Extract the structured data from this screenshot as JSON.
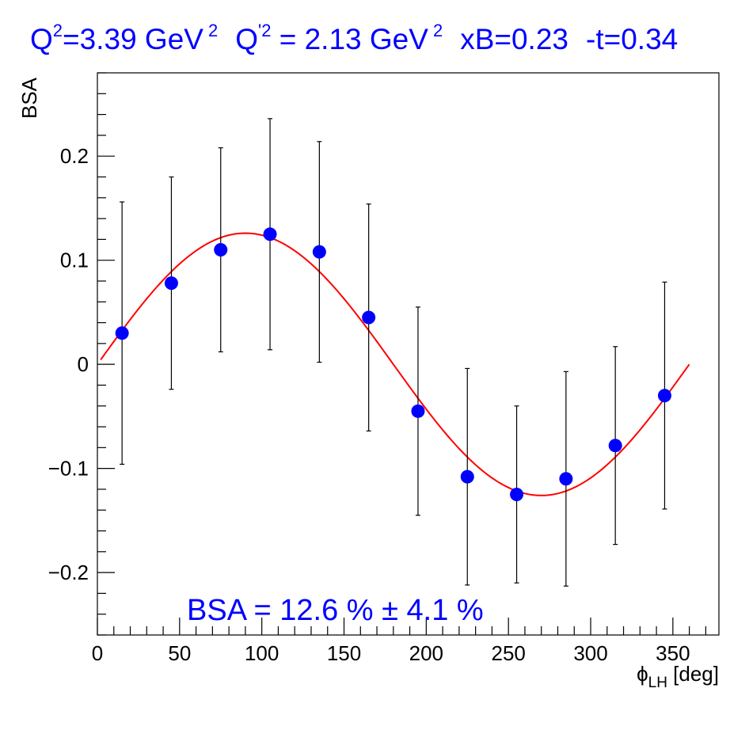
{
  "colors": {
    "title": "#0000ff",
    "points": "#0000ff",
    "fit": "#ff0000",
    "annotation": "#0000ff",
    "axes": "#000000"
  },
  "title": {
    "q2": "Q",
    "q2_sup": "2",
    "q2_val": "=3.39 GeV",
    "q2_unit_sup": "2",
    "qp2": "Q",
    "qp2_sup": "'2",
    "qp2_val": " = 2.13 GeV",
    "qp2_unit_sup": "2",
    "xb": "xB=0.23",
    "t": "-t=0.34"
  },
  "annotation": "BSA = 12.6 % ± 4.1 %",
  "chart_data": {
    "type": "scatter",
    "ylabel": "BSA",
    "xlabel_main": "ϕ",
    "xlabel_sub": "LH",
    "xlabel_unit": " [deg]",
    "xlim": [
      0,
      378
    ],
    "ylim": [
      -0.26,
      0.28
    ],
    "xticks": [
      0,
      50,
      100,
      150,
      200,
      250,
      300,
      350
    ],
    "xtick_labels": [
      "0",
      "50",
      "100",
      "150",
      "200",
      "250",
      "300",
      "350"
    ],
    "yticks": [
      -0.2,
      -0.1,
      0,
      0.1,
      0.2
    ],
    "ytick_labels": [
      "−0.2",
      "−0.1",
      "0",
      "0.1",
      "0.2"
    ],
    "x": [
      15,
      45,
      75,
      105,
      135,
      165,
      195,
      225,
      255,
      285,
      315,
      345
    ],
    "y": [
      0.03,
      0.078,
      0.11,
      0.125,
      0.108,
      0.045,
      -0.045,
      -0.108,
      -0.125,
      -0.11,
      -0.078,
      -0.03
    ],
    "yerr": [
      0.126,
      0.102,
      0.098,
      0.111,
      0.106,
      0.109,
      0.1,
      0.104,
      0.085,
      0.103,
      0.095,
      0.109
    ],
    "fit": {
      "function": "A*sin(phi)",
      "amplitude": 0.126,
      "x_range": [
        2,
        360
      ]
    }
  }
}
